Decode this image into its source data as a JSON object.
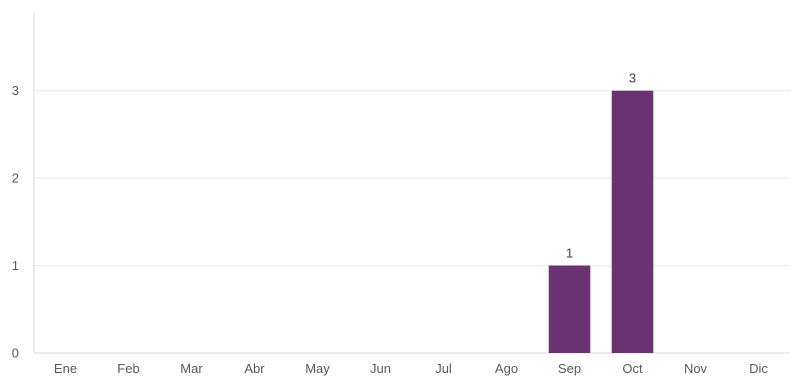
{
  "chart_data": {
    "type": "bar",
    "categories": [
      "Ene",
      "Feb",
      "Mar",
      "Abr",
      "May",
      "Jun",
      "Jul",
      "Ago",
      "Sep",
      "Oct",
      "Nov",
      "Dic"
    ],
    "values": [
      0,
      0,
      0,
      0,
      0,
      0,
      0,
      0,
      1,
      3,
      0,
      0
    ],
    "data_labels": [
      null,
      null,
      null,
      null,
      null,
      null,
      null,
      null,
      "1",
      "3",
      null,
      null
    ],
    "yticks": [
      0,
      1,
      2,
      3
    ],
    "ylim": [
      0,
      3.9
    ],
    "title": "",
    "xlabel": "",
    "ylabel": "",
    "grid": true,
    "legend": "none",
    "bar_color": "#6c3372",
    "grid_color": "#e8e8e8",
    "axis_color": "#d9d9d9"
  }
}
